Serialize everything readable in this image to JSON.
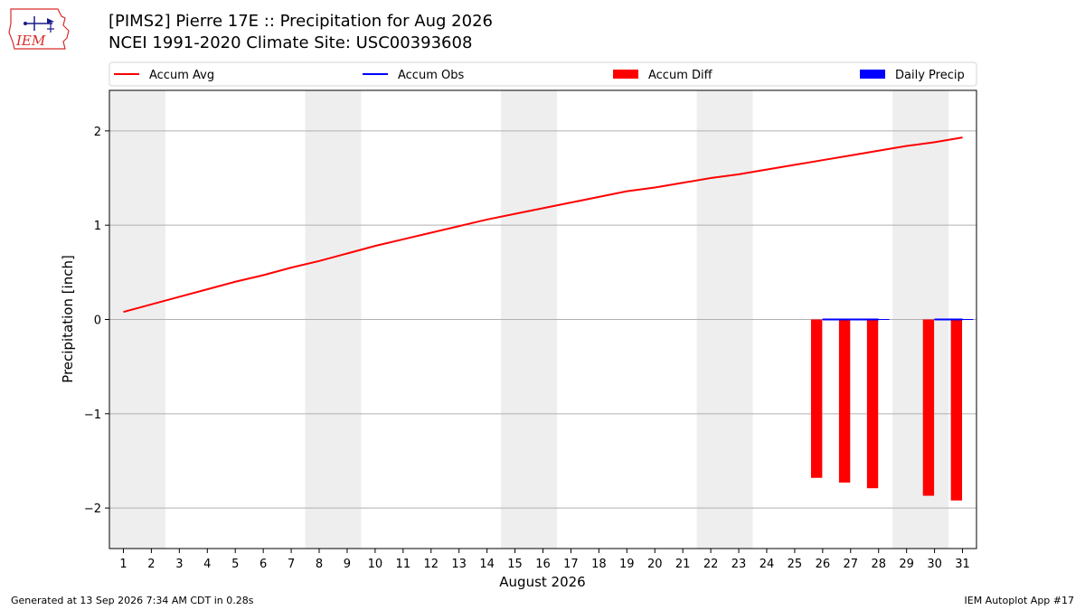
{
  "header": {
    "title_line1": "[PIMS2] Pierre 17E :: Precipitation for Aug 2026",
    "title_line2": "NCEI 1991-2020 Climate Site: USC00393608"
  },
  "logo": {
    "text": "IEM",
    "icon": "iem-state-outline-logo",
    "color": "#d92b2b"
  },
  "footer": {
    "left": "Generated at 13 Sep 2026 7:34 AM CDT in 0.28s",
    "right": "IEM Autoplot App #17"
  },
  "chart_data": {
    "type": "line",
    "xlabel": "August 2026",
    "ylabel": "Precipitation [inch]",
    "xlim": [
      0.5,
      31.5
    ],
    "ylim": [
      -2.43,
      2.43
    ],
    "yticks": [
      -2,
      -1,
      0,
      1,
      2
    ],
    "ytick_labels": [
      "−2",
      "−1",
      "0",
      "1",
      "2"
    ],
    "x": [
      1,
      2,
      3,
      4,
      5,
      6,
      7,
      8,
      9,
      10,
      11,
      12,
      13,
      14,
      15,
      16,
      17,
      18,
      19,
      20,
      21,
      22,
      23,
      24,
      25,
      26,
      27,
      28,
      29,
      30,
      31
    ],
    "xtick_labels": [
      "1",
      "2",
      "3",
      "4",
      "5",
      "6",
      "7",
      "8",
      "9",
      "10",
      "11",
      "12",
      "13",
      "14",
      "15",
      "16",
      "17",
      "18",
      "19",
      "20",
      "21",
      "22",
      "23",
      "24",
      "25",
      "26",
      "27",
      "28",
      "29",
      "30",
      "31"
    ],
    "weekend_bands": [
      [
        0.5,
        2.5
      ],
      [
        7.5,
        9.5
      ],
      [
        14.5,
        16.5
      ],
      [
        21.5,
        23.5
      ],
      [
        28.5,
        30.5
      ]
    ],
    "grid": "horizontal",
    "legend_position": "top",
    "legend": [
      {
        "label": "Accum Avg",
        "kind": "line",
        "color": "#ff0000"
      },
      {
        "label": "Accum Obs",
        "kind": "line",
        "color": "#0000ff"
      },
      {
        "label": "Accum Diff",
        "kind": "bar",
        "color": "#ff0000"
      },
      {
        "label": "Daily Precip",
        "kind": "bar",
        "color": "#0000ff"
      }
    ],
    "series": [
      {
        "name": "Accum Avg",
        "kind": "line",
        "color": "#ff0000",
        "x": [
          1,
          2,
          3,
          4,
          5,
          6,
          7,
          8,
          9,
          10,
          11,
          12,
          13,
          14,
          15,
          16,
          17,
          18,
          19,
          20,
          21,
          22,
          23,
          24,
          25,
          26,
          27,
          28,
          29,
          30,
          31
        ],
        "values": [
          0.08,
          0.16,
          0.24,
          0.32,
          0.4,
          0.47,
          0.55,
          0.62,
          0.7,
          0.78,
          0.85,
          0.92,
          0.99,
          1.06,
          1.12,
          1.18,
          1.24,
          1.3,
          1.36,
          1.4,
          1.45,
          1.5,
          1.54,
          1.59,
          1.64,
          1.69,
          1.74,
          1.79,
          1.84,
          1.88,
          1.93
        ]
      },
      {
        "name": "Accum Obs",
        "kind": "line",
        "color": "#0000ff",
        "segments": [
          {
            "x": [
              26,
              27,
              28
            ],
            "values": [
              0,
              0,
              0
            ]
          },
          {
            "x": [
              30,
              31
            ],
            "values": [
              0,
              0
            ]
          }
        ]
      },
      {
        "name": "Accum Diff",
        "kind": "bar",
        "color": "#ff0000",
        "x": [
          26,
          27,
          28,
          30,
          31
        ],
        "values": [
          -1.68,
          -1.73,
          -1.79,
          -1.87,
          -1.92
        ]
      },
      {
        "name": "Daily Precip",
        "kind": "bar",
        "color": "#0000ff",
        "x": [
          26,
          27,
          28,
          30,
          31
        ],
        "values": [
          0,
          0,
          0,
          0,
          0
        ]
      }
    ]
  }
}
